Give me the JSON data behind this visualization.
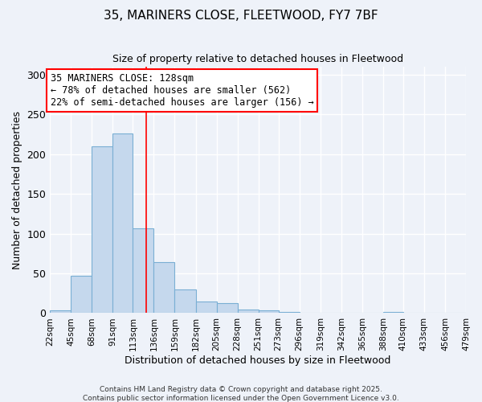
{
  "title": "35, MARINERS CLOSE, FLEETWOOD, FY7 7BF",
  "subtitle": "Size of property relative to detached houses in Fleetwood",
  "xlabel": "Distribution of detached houses by size in Fleetwood",
  "ylabel": "Number of detached properties",
  "bar_color": "#c5d8ed",
  "bar_edge_color": "#7aafd4",
  "background_color": "#eef2f9",
  "grid_color": "#ffffff",
  "bin_edges": [
    22,
    45,
    68,
    91,
    113,
    136,
    159,
    182,
    205,
    228,
    251,
    273,
    296,
    319,
    342,
    365,
    388,
    410,
    433,
    456,
    479
  ],
  "bin_labels": [
    "22sqm",
    "45sqm",
    "68sqm",
    "91sqm",
    "113sqm",
    "136sqm",
    "159sqm",
    "182sqm",
    "205sqm",
    "228sqm",
    "251sqm",
    "273sqm",
    "296sqm",
    "319sqm",
    "342sqm",
    "365sqm",
    "388sqm",
    "410sqm",
    "433sqm",
    "456sqm",
    "479sqm"
  ],
  "counts": [
    4,
    47,
    210,
    226,
    107,
    64,
    30,
    15,
    13,
    5,
    3,
    1,
    0,
    0,
    0,
    0,
    1,
    0,
    0,
    0
  ],
  "vline_x": 128,
  "annotation_title": "35 MARINERS CLOSE: 128sqm",
  "annotation_line1": "← 78% of detached houses are smaller (562)",
  "annotation_line2": "22% of semi-detached houses are larger (156) →",
  "ylim": [
    0,
    310
  ],
  "yticks": [
    0,
    50,
    100,
    150,
    200,
    250,
    300
  ],
  "footer1": "Contains HM Land Registry data © Crown copyright and database right 2025.",
  "footer2": "Contains public sector information licensed under the Open Government Licence v3.0."
}
